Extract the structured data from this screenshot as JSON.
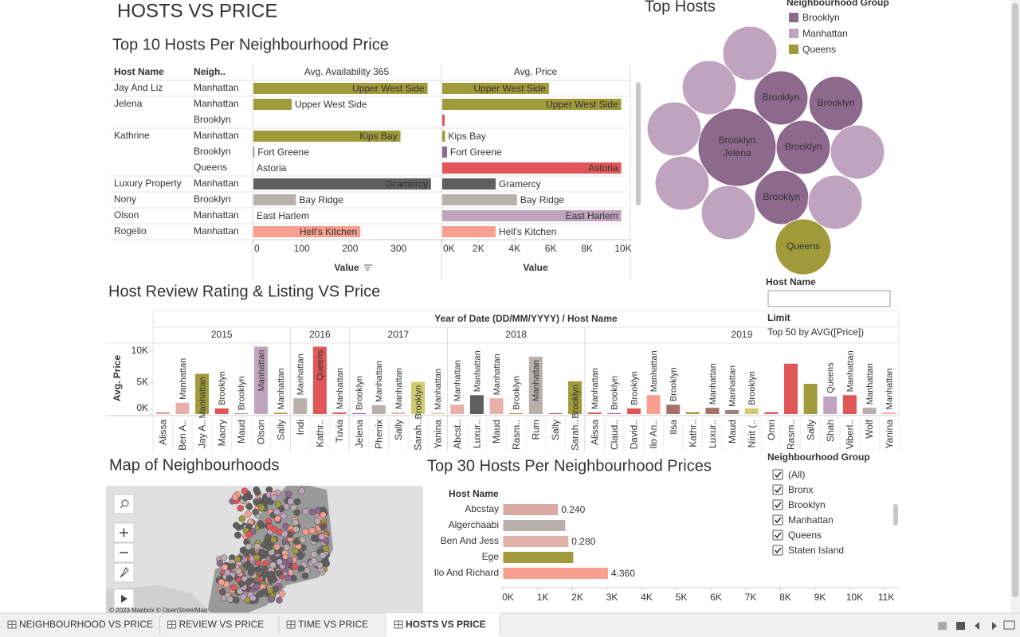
{
  "dashboard_title": "HOSTS VS PRICE",
  "top10": {
    "title": "Top 10 Hosts Per Neighbourhood Price",
    "headers": {
      "host": "Host Name",
      "group": "Neigh..",
      "availability": "Avg. Availability 365",
      "price": "Avg. Price"
    },
    "hosts": [
      {
        "name": "Jay And Liz",
        "rows": [
          {
            "group": "Manhattan",
            "color": "#a09a3a",
            "availability": 360,
            "availability_label": "Upper West Side",
            "price": 5900,
            "price_label": "Upper West Side"
          }
        ]
      },
      {
        "name": "Jelena",
        "rows": [
          {
            "group": "Manhattan",
            "color": "#a09a3a",
            "availability": 79,
            "availability_label": "Upper West Side",
            "price": 9900,
            "price_label": "Upper West Side"
          },
          {
            "group": "Brooklyn",
            "color": "#e15759",
            "availability": 0,
            "availability_label": null,
            "price": 130,
            "price_label": null
          }
        ]
      },
      {
        "name": "Kathrine",
        "rows": [
          {
            "group": "Manhattan",
            "color": "#a09a3a",
            "availability": 304,
            "availability_label": "Kips Bay",
            "price": 150,
            "price_label": "Kips Bay"
          },
          {
            "group": "Brooklyn",
            "color": "#8d6a8d",
            "availability": 2,
            "availability_label": "Fort Greene",
            "price": 260,
            "price_label": "Fort Greene"
          },
          {
            "group": "Queens",
            "color": "#e15759",
            "availability": 0,
            "availability_label": "Astoria",
            "price": 9900,
            "price_label": "Astoria"
          }
        ]
      },
      {
        "name": "Luxury Property",
        "rows": [
          {
            "group": "Manhattan",
            "color": "#5f5f5f",
            "availability": 367,
            "availability_label": "Gramercy",
            "price": 2950,
            "price_label": "Gramercy"
          }
        ]
      },
      {
        "name": "Nony",
        "rows": [
          {
            "group": "Brooklyn",
            "color": "#bab0ab",
            "availability": 88,
            "availability_label": "Bay Ridge",
            "price": 4130,
            "price_label": "Bay Ridge"
          }
        ]
      },
      {
        "name": "Olson",
        "rows": [
          {
            "group": "Manhattan",
            "color": "#c0a4bf",
            "availability": 0,
            "availability_label": "East Harlem",
            "price": 9900,
            "price_label": "East Harlem"
          }
        ]
      },
      {
        "name": "Rogelio",
        "rows": [
          {
            "group": "Manhattan",
            "color": "#f89f8f",
            "availability": 221,
            "availability_label": "Hell's Kitchen",
            "price": 2950,
            "price_label": "Hell's Kitchen"
          }
        ]
      }
    ],
    "availability_axis": {
      "label": "Value",
      "xlim": [
        0,
        387
      ],
      "xticks": [
        0,
        100,
        200,
        300
      ]
    },
    "price_axis": {
      "label": "Value",
      "xlim": [
        0,
        10400
      ],
      "xticks": [
        {
          "value": 0,
          "label": "0K"
        },
        {
          "value": 2000,
          "label": "2K"
        },
        {
          "value": 4000,
          "label": "4K"
        },
        {
          "value": 6000,
          "label": "6K"
        },
        {
          "value": 8000,
          "label": "8K"
        },
        {
          "value": 10000,
          "label": "10K"
        }
      ]
    }
  },
  "top_hosts": {
    "title": "Top Hosts",
    "legend_title": "Neighbourhood Group",
    "legend": [
      {
        "name": "Brooklyn",
        "color": "#8d6a8d"
      },
      {
        "name": "Manhattan",
        "color": "#c0a4bf"
      },
      {
        "name": "Queens",
        "color": "#a09a3a"
      }
    ],
    "bubbles": [
      {
        "group": "Manhattan",
        "value": 48
      },
      {
        "group": "Manhattan",
        "value": 48
      },
      {
        "group": "Brooklyn",
        "value": 48,
        "label": "Brooklyn"
      },
      {
        "group": "Brooklyn",
        "value": 48,
        "label": "Brooklyn"
      },
      {
        "group": "Manhattan",
        "value": 48
      },
      {
        "group": "Brooklyn",
        "value": 100,
        "label": "Brooklyn",
        "host": "Jelena"
      },
      {
        "group": "Brooklyn",
        "value": 48,
        "label": "Brooklyn"
      },
      {
        "group": "Manhattan",
        "value": 48
      },
      {
        "group": "Manhattan",
        "value": 48
      },
      {
        "group": "Brooklyn",
        "value": 48,
        "label": "Brooklyn"
      },
      {
        "group": "Manhattan",
        "value": 48
      },
      {
        "group": "Manhattan",
        "value": 48
      },
      {
        "group": "Queens",
        "value": 51,
        "label": "Queens"
      }
    ]
  },
  "host_filter": {
    "label": "Host Name",
    "limit_label": "Limit",
    "limit_text": "Top 50 by AVG([Price])"
  },
  "review_chart": {
    "title": "Host Review Rating & Listing VS Price",
    "header": "Year of Date (DD/MM/YYYY)  /  Host Name",
    "y_label": "Avg. Price",
    "ylim": [
      0,
      11000
    ],
    "yticks": [
      {
        "value": 0,
        "label": "0K"
      },
      {
        "value": 5000,
        "label": "5K"
      },
      {
        "value": 10000,
        "label": "10K"
      }
    ],
    "years": [
      {
        "year": "2015",
        "hosts": [
          {
            "name": "Alissa",
            "value": 300,
            "color": "#d9a4a0",
            "group": null
          },
          {
            "name": "Ben A..",
            "value": 1800,
            "color": "#e8b0a8",
            "group": "Manhattan"
          },
          {
            "name": "Jay A..",
            "value": 6400,
            "color": "#a09a3a",
            "group": "Manhattan"
          },
          {
            "name": "Maory",
            "value": 900,
            "color": "#e15759",
            "group": "Brooklyn"
          },
          {
            "name": "Maud",
            "value": 100,
            "color": "#8d6a8d",
            "group": "Brooklyn"
          },
          {
            "name": "Olson",
            "value": 10700,
            "color": "#c0a4bf",
            "group": "Manhattan"
          },
          {
            "name": "Sally",
            "value": 200,
            "color": "#a09a3a",
            "group": "Manhattan"
          }
        ]
      },
      {
        "year": "2016",
        "hosts": [
          {
            "name": "Indi",
            "value": 2500,
            "color": "#bab0ab",
            "group": "Manhattan"
          },
          {
            "name": "Kathr..",
            "value": 10700,
            "color": "#e15759",
            "group": "Queens"
          },
          {
            "name": "Tuvia",
            "value": 250,
            "color": "#e15759",
            "group": "Manhattan"
          }
        ]
      },
      {
        "year": "2017",
        "hosts": [
          {
            "name": "Jelena",
            "value": 150,
            "color": "#8d6a8d",
            "group": "Brooklyn"
          },
          {
            "name": "Phenix",
            "value": 1400,
            "color": "#bab0ab",
            "group": "Manhattan"
          },
          {
            "name": "Sally",
            "value": 250,
            "color": "#e8b0a8",
            "group": "Manhattan"
          },
          {
            "name": "Sarah..",
            "value": 5100,
            "color": "#cfcb6e",
            "group": "Brooklyn"
          },
          {
            "name": "Yanina",
            "value": 150,
            "color": "#e8b0a8",
            "group": "Manhattan"
          }
        ]
      },
      {
        "year": "2018",
        "hosts": [
          {
            "name": "Abcst..",
            "value": 1500,
            "color": "#e8b0a8",
            "group": "Manhattan"
          },
          {
            "name": "Luxur..",
            "value": 3000,
            "color": "#5f5f5f",
            "group": "Manhattan"
          },
          {
            "name": "Maud",
            "value": 2500,
            "color": "#e8b0a8",
            "group": "Manhattan"
          },
          {
            "name": "Rasm..",
            "value": 150,
            "color": "#a09a3a",
            "group": "Brooklyn"
          },
          {
            "name": "Rum",
            "value": 9100,
            "color": "#bab0ab",
            "group": "Manhattan"
          },
          {
            "name": "Sally",
            "value": 150,
            "color": "#8d6a8d",
            "group": null
          },
          {
            "name": "Sarah..",
            "value": 5200,
            "color": "#a09a3a",
            "group": "Brooklyn"
          }
        ]
      },
      {
        "year": "2019",
        "hosts": [
          {
            "name": "Alissa",
            "value": 250,
            "color": "#e15759",
            "group": "Manhattan"
          },
          {
            "name": "Claud..",
            "value": 150,
            "color": "#8d6a8d",
            "group": "Brooklyn"
          },
          {
            "name": "David..",
            "value": 900,
            "color": "#e15759",
            "group": "Brooklyn"
          },
          {
            "name": "Ilo An..",
            "value": 3000,
            "color": "#f89f8f",
            "group": "Manhattan"
          },
          {
            "name": "Ilsa",
            "value": 1500,
            "color": "#a9706a",
            "group": "Brooklyn"
          },
          {
            "name": "Kathr..",
            "value": 300,
            "color": "#a09a3a",
            "group": null
          },
          {
            "name": "Luxur..",
            "value": 1000,
            "color": "#a9706a",
            "group": "Manhattan"
          },
          {
            "name": "Maud",
            "value": 650,
            "color": "#a08080",
            "group": "Manhattan"
          },
          {
            "name": "Nirit (..",
            "value": 900,
            "color": "#cfcb6e",
            "group": "Brooklyn"
          },
          {
            "name": "Omri",
            "value": 300,
            "color": "#e15759",
            "group": null
          },
          {
            "name": "Rasm..",
            "value": 8000,
            "color": "#e15759",
            "group": null
          },
          {
            "name": "Sally",
            "value": 4800,
            "color": "#a09a3a",
            "group": null
          },
          {
            "name": "Shah",
            "value": 2800,
            "color": "#c0a4bf",
            "group": "Queens"
          },
          {
            "name": "Viberl..",
            "value": 3000,
            "color": "#e15759",
            "group": "Manhattan"
          },
          {
            "name": "Wolf",
            "value": 1000,
            "color": "#bab0ab",
            "group": "Manhattan"
          },
          {
            "name": "Yanina",
            "value": 200,
            "color": "#f89f8f",
            "group": "Manhattan"
          }
        ]
      }
    ]
  },
  "map": {
    "title": "Map of Neighbourhoods",
    "attribution": "© 2023 Mapbox © OpenStreetMap"
  },
  "top30": {
    "title": "Top 30 Hosts Per Neighbourhood Prices",
    "header": "Host Name",
    "rows": [
      {
        "host": "Abcstay",
        "value": 1580,
        "label": "0.240",
        "color": "#d9a9a3"
      },
      {
        "host": "Algerchaabi",
        "value": 1790,
        "label": null,
        "color": "#bab0ab"
      },
      {
        "host": "Ben And Jess",
        "value": 1880,
        "label": "0.280",
        "color": "#e0b1ab"
      },
      {
        "host": "Ege",
        "value": 2020,
        "label": null,
        "color": "#a09a3a"
      },
      {
        "host": "Ilo And Richard",
        "value": 3020,
        "label": "4.360",
        "color": "#f89f8f"
      }
    ],
    "xlim": [
      0,
      11400
    ],
    "xticks": [
      {
        "value": 0,
        "label": "0K"
      },
      {
        "value": 1000,
        "label": "1K"
      },
      {
        "value": 2000,
        "label": "2K"
      },
      {
        "value": 3000,
        "label": "3K"
      },
      {
        "value": 4000,
        "label": "4K"
      },
      {
        "value": 5000,
        "label": "5K"
      },
      {
        "value": 6000,
        "label": "6K"
      },
      {
        "value": 7000,
        "label": "7K"
      },
      {
        "value": 8000,
        "label": "8K"
      },
      {
        "value": 9000,
        "label": "9K"
      },
      {
        "value": 10000,
        "label": "10K"
      },
      {
        "value": 11000,
        "label": "11K"
      }
    ]
  },
  "group_filter": {
    "title": "Neighbourhood Group",
    "options": [
      {
        "label": "(All)",
        "checked": true
      },
      {
        "label": "Bronx",
        "checked": true
      },
      {
        "label": "Brooklyn",
        "checked": true
      },
      {
        "label": "Manhattan",
        "checked": true
      },
      {
        "label": "Queens",
        "checked": true
      },
      {
        "label": "Staten Island",
        "checked": true
      }
    ]
  },
  "tabs": [
    {
      "label": "NEIGHBOURHOOD VS PRICE",
      "active": false
    },
    {
      "label": "REVIEW VS PRICE",
      "active": false
    },
    {
      "label": "TIME VS PRICE",
      "active": false
    },
    {
      "label": "HOSTS VS PRICE",
      "active": true
    }
  ]
}
